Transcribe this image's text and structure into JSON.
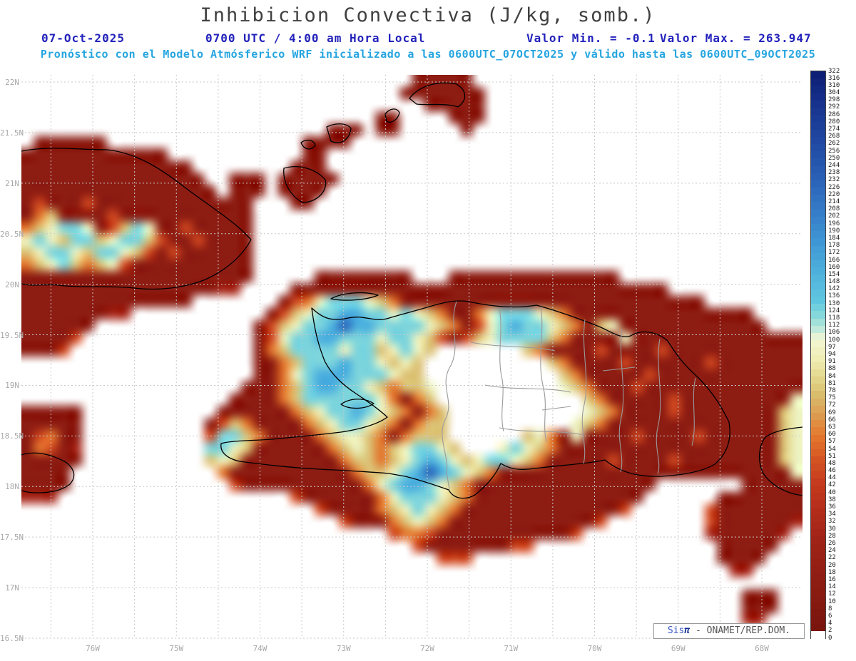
{
  "header": {
    "title": "Inhibicion Convectiva (J/kg, somb.)",
    "date": "07-Oct-2025",
    "time_label": "0700 UTC / 4:00 am Hora Local",
    "valor_min": "Valor Min. = -0.1",
    "valor_max": "Valor Max. = 263.947",
    "subtitle": "Pronóstico con el Modelo Atmósferico WRF inicializado a las 0600UTC_07OCT2025 y válido hasta las 0600UTC_09OCT2025"
  },
  "axes": {
    "lat_ticks": [
      "22N",
      "21.5N",
      "21N",
      "20.5N",
      "20N",
      "19.5N",
      "19N",
      "18.5N",
      "18N",
      "17.5N",
      "17N",
      "16.5N"
    ],
    "lon_ticks": [
      "76W",
      "75W",
      "74W",
      "73W",
      "72W",
      "71W",
      "70W",
      "69W",
      "68W"
    ]
  },
  "watermark": {
    "brand": "Sis",
    "pi": "π",
    "text": " - ONAMET/REP.DOM."
  },
  "colors": {
    "header_blue": "#2222bb",
    "subtitle_cyan": "#25a5e0",
    "title_gray": "#404040",
    "tick_gray": "#a8a8a8",
    "grid_gray": "#c9c9c9",
    "coastline_black": "#000000",
    "border_gray": "#9a9a9a"
  },
  "chart_data": {
    "type": "heatmap",
    "title": "Inhibicion Convectiva (J/kg, somb.)",
    "units": "J/kg",
    "value_min": -0.1,
    "value_max": 263.947,
    "model": "WRF",
    "init_time": "0600UTC_07OCT2025",
    "valid_time": "0600UTC_09OCT2025",
    "lon_ticks_deg_w": [
      76,
      75,
      74,
      73,
      72,
      71,
      70,
      69,
      68
    ],
    "lat_ticks_deg_n": [
      22,
      21.5,
      21,
      20.5,
      20,
      19.5,
      19,
      18.5,
      18,
      17.5,
      17,
      16.5
    ],
    "legend_position": "right",
    "grid_on": true,
    "colorbar_levels": [
      322,
      316,
      310,
      304,
      298,
      292,
      286,
      280,
      274,
      268,
      262,
      256,
      250,
      244,
      238,
      232,
      226,
      220,
      214,
      208,
      202,
      196,
      190,
      184,
      178,
      172,
      166,
      160,
      154,
      148,
      142,
      136,
      130,
      124,
      118,
      112,
      106,
      100,
      97,
      94,
      91,
      88,
      84,
      81,
      78,
      75,
      72,
      69,
      66,
      63,
      60,
      57,
      54,
      51,
      48,
      46,
      44,
      42,
      40,
      38,
      36,
      34,
      32,
      30,
      28,
      26,
      24,
      22,
      20,
      18,
      16,
      14,
      12,
      10,
      8,
      6,
      4,
      2,
      0
    ],
    "color_stops": [
      {
        "v": 0,
        "c": "#ffffff"
      },
      {
        "v": 2,
        "c": "#7a150e"
      },
      {
        "v": 14,
        "c": "#8d1c12"
      },
      {
        "v": 26,
        "c": "#a02317"
      },
      {
        "v": 34,
        "c": "#b32c1a"
      },
      {
        "v": 42,
        "c": "#c63b1d"
      },
      {
        "v": 50,
        "c": "#d85b24"
      },
      {
        "v": 58,
        "c": "#e4772e"
      },
      {
        "v": 66,
        "c": "#dd9a4e"
      },
      {
        "v": 74,
        "c": "#d9b868"
      },
      {
        "v": 82,
        "c": "#e2d88c"
      },
      {
        "v": 90,
        "c": "#eeeab0"
      },
      {
        "v": 97,
        "c": "#f2f5cc"
      },
      {
        "v": 100,
        "c": "#e6f3d4"
      },
      {
        "v": 106,
        "c": "#bfe9da"
      },
      {
        "v": 118,
        "c": "#84d7da"
      },
      {
        "v": 130,
        "c": "#5fc6e0"
      },
      {
        "v": 154,
        "c": "#4db0dc"
      },
      {
        "v": 178,
        "c": "#3f96d4"
      },
      {
        "v": 202,
        "c": "#357dc8"
      },
      {
        "v": 226,
        "c": "#2b65ba"
      },
      {
        "v": 250,
        "c": "#2351aa"
      },
      {
        "v": 274,
        "c": "#1c3f9a"
      },
      {
        "v": 298,
        "c": "#152d88"
      },
      {
        "v": 322,
        "c": "#0a1b70"
      }
    ],
    "grid_palette": {
      ".": "#ffffff",
      "R": "#8d1c12",
      "r": "#a8271a",
      "o": "#cf4720",
      "O": "#e2762e",
      "y": "#dcc276",
      "g": "#edf2c0",
      "c": "#7cd4dc",
      "b": "#4aaede",
      "B": "#2a64ba"
    },
    "grid_encoding": "run-length tokens charCount, 64 cols x 46 rows, '.'=no shading (<2 J/kg)",
    "grid_rows": [
      ".32R5.27",
      ".31R7.26",
      ".33R5.26",
      ".29R2.4R3.26",
      ".25R3.1R2.5R1.27",
      ".1R6.16R4.37",
      "R12.11R2.39",
      "R14.8R3.39",
      "R15.2R3.1R5.38",
      "R16.1R3.1R4.39",
      "R1o1R3o1R13.3R2.40",
      "R1O1y1R4o1R11.45",
      "O1y1g1c2g1R1o1y1c1g1R2o1R5.45",
      "g1c1g1y1c2y1g1c2y1o1R2o1R4.45",
      "y1g1c2g1y1c2g1y1o1R1o1R6.45",
      "O1y1g1c1y1O1y1g1o1R10.45",
      "R19.5R8.3R14.15",
      "R16r2.4R31.11",
      "R14.7R1o1O1g1c3g1y1O1R25.8",
      "R7r2.11R1o1y1g1c2b2c2g1c1g1y1O1R2O1g1c3g1y1O1R15.4",
      "R6.13R1o1y1g1c2b1B1b2c4g1y1O1R1o1g1c1b1c2g1y1O1R1y1g1R12.3",
      "R4o1.14R1o1g1c2b2c3g1c2g1y1o1R1o1y1g1c4y1O1R4g1R14",
      "R3o1.15R1O1y1c4g1c2y1g1c1g1y1.7y1O1R4o1R4o1R11",
      ".19R2O1y1c3b1c2g1y1g1y1.10y1O1R4o1R6o1R7",
      ".19R2O1g1c1b3c3g1y2.11y1O1R5o1R12",
      ".18R3O1y1c1b2c2g1y1O1y2g1.10g1y1O1R3o1R13",
      ".17R4O1y1c6g1O1R1O1y1.12y1O1R5o1R9g1",
      "R5.11R6O1y1g1c2b1c1g1y1O1R1O1y1.11g1y1O1R4o1R8y1g1",
      "R5.10R1o1y1O1R4O1y1g1c2g1y1O1R1O1y2.10g1y1O1R14y1g1",
      "R1o1O1R2.10o1c2y1O1R4O1y1g2y1O1R1O1y3.6y1g1O1R1g1R4o1R4o1R6y1g1",
      "R1O1o1R1r1.10c2g1y1R6O1y1g1y1O1y1g1c2g1y1.3g1c1g1y1O1R18y1g1",
      "R5.10y1g1y1R8O1y2O1y1g1c1b1c1g1y1g1c2g1y1O1R5o1R4o1R8y1g1",
      "R4.12O1R10O1y2g1c1b1B1b1c1g1y1O1R24g1",
      "R4.13o1R10O1g1c1b2c1g1y1O1R15.7R5",
      "r3.19o1R6O1g1c3g1y1O1R14.6R7",
      ".24o1R4O1y1g1c1g1y1O1R13o1.6o1R7",
      ".26o1R3O1y1g1y1O1R12o1.8o1R6r1",
      ".30o1O2o1R11o1.10r1R5r1.1",
      ".32o1R7o2.15R5.2",
      ".34o3.20R4.3",
      ".58r2.4",
      ".64",
      ".59R3.2",
      ".59R3.2",
      ".59r2.3",
      ".64"
    ]
  }
}
